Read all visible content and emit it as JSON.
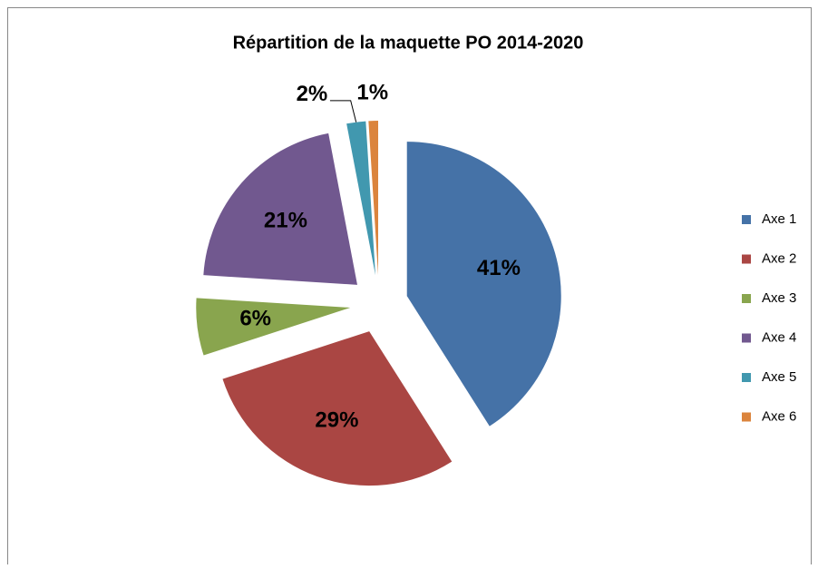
{
  "chart_data": {
    "type": "pie",
    "title": "Répartition de la maquette  PO 2014-2020",
    "categories": [
      "Axe 1",
      "Axe 2",
      "Axe 3",
      "Axe 4",
      "Axe 5",
      "Axe 6"
    ],
    "values": [
      41,
      29,
      6,
      21,
      2,
      1
    ],
    "value_labels": [
      "41%",
      "29%",
      "6%",
      "21%",
      "2%",
      "1%"
    ],
    "colors": [
      "#4572a7",
      "#aa4643",
      "#89a54e",
      "#71588f",
      "#4198af",
      "#db843d"
    ],
    "legend": "right"
  }
}
